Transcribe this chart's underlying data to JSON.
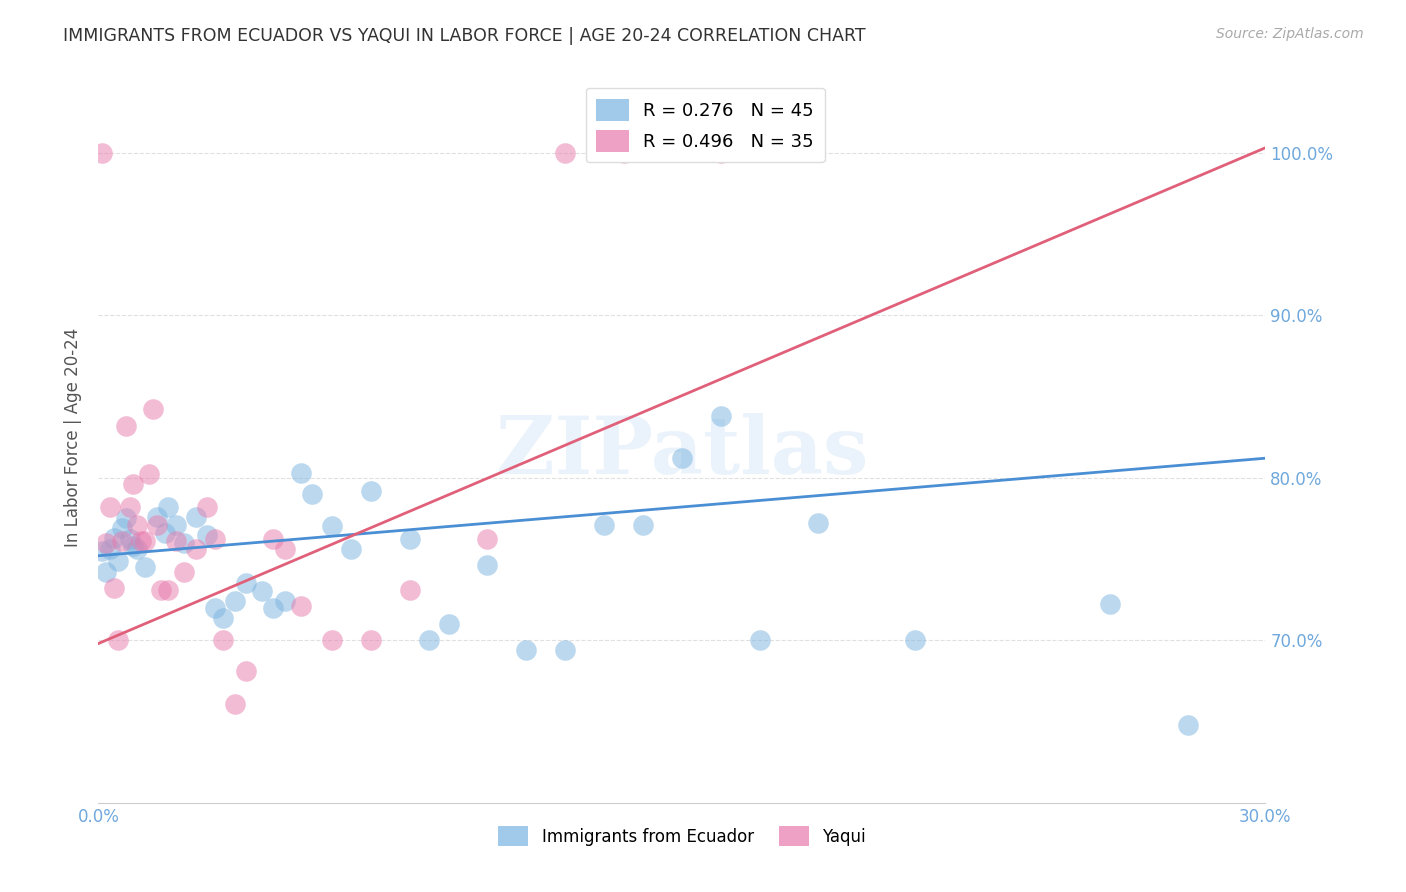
{
  "title": "IMMIGRANTS FROM ECUADOR VS YAQUI IN LABOR FORCE | AGE 20-24 CORRELATION CHART",
  "source": "Source: ZipAtlas.com",
  "ylabel": "In Labor Force | Age 20-24",
  "xlim": [
    0.0,
    0.3
  ],
  "ylim": [
    0.6,
    1.05
  ],
  "legend_entries": [
    {
      "label": "R = 0.276   N = 45",
      "color": "#7ab3e0"
    },
    {
      "label": "R = 0.496   N = 35",
      "color": "#e87aac"
    }
  ],
  "legend_labels_bottom": [
    "Immigrants from Ecuador",
    "Yaqui"
  ],
  "watermark": "ZIPatlas",
  "blue_color": "#7ab3e0",
  "pink_color": "#e87aac",
  "blue_line_color": "#4a8fd4",
  "pink_line_color": "#e0607a",
  "ecuador_points": [
    [
      0.001,
      0.755
    ],
    [
      0.002,
      0.742
    ],
    [
      0.003,
      0.756
    ],
    [
      0.004,
      0.763
    ],
    [
      0.005,
      0.749
    ],
    [
      0.006,
      0.769
    ],
    [
      0.007,
      0.775
    ],
    [
      0.008,
      0.762
    ],
    [
      0.009,
      0.758
    ],
    [
      0.01,
      0.756
    ],
    [
      0.012,
      0.745
    ],
    [
      0.015,
      0.776
    ],
    [
      0.017,
      0.766
    ],
    [
      0.018,
      0.782
    ],
    [
      0.02,
      0.771
    ],
    [
      0.022,
      0.76
    ],
    [
      0.025,
      0.776
    ],
    [
      0.028,
      0.765
    ],
    [
      0.03,
      0.72
    ],
    [
      0.032,
      0.714
    ],
    [
      0.035,
      0.724
    ],
    [
      0.038,
      0.735
    ],
    [
      0.042,
      0.73
    ],
    [
      0.045,
      0.72
    ],
    [
      0.048,
      0.724
    ],
    [
      0.052,
      0.803
    ],
    [
      0.055,
      0.79
    ],
    [
      0.06,
      0.77
    ],
    [
      0.065,
      0.756
    ],
    [
      0.07,
      0.792
    ],
    [
      0.08,
      0.762
    ],
    [
      0.085,
      0.7
    ],
    [
      0.09,
      0.71
    ],
    [
      0.1,
      0.746
    ],
    [
      0.11,
      0.694
    ],
    [
      0.12,
      0.694
    ],
    [
      0.13,
      0.771
    ],
    [
      0.14,
      0.771
    ],
    [
      0.15,
      0.812
    ],
    [
      0.16,
      0.838
    ],
    [
      0.17,
      0.7
    ],
    [
      0.185,
      0.772
    ],
    [
      0.21,
      0.7
    ],
    [
      0.26,
      0.722
    ],
    [
      0.28,
      0.648
    ]
  ],
  "yaqui_points": [
    [
      0.001,
      1.0
    ],
    [
      0.002,
      0.76
    ],
    [
      0.003,
      0.782
    ],
    [
      0.004,
      0.732
    ],
    [
      0.005,
      0.7
    ],
    [
      0.006,
      0.761
    ],
    [
      0.007,
      0.832
    ],
    [
      0.008,
      0.782
    ],
    [
      0.009,
      0.796
    ],
    [
      0.01,
      0.771
    ],
    [
      0.011,
      0.761
    ],
    [
      0.012,
      0.761
    ],
    [
      0.013,
      0.802
    ],
    [
      0.014,
      0.842
    ],
    [
      0.015,
      0.771
    ],
    [
      0.016,
      0.731
    ],
    [
      0.018,
      0.731
    ],
    [
      0.02,
      0.761
    ],
    [
      0.022,
      0.742
    ],
    [
      0.025,
      0.756
    ],
    [
      0.028,
      0.782
    ],
    [
      0.03,
      0.762
    ],
    [
      0.032,
      0.7
    ],
    [
      0.035,
      0.661
    ],
    [
      0.038,
      0.681
    ],
    [
      0.045,
      0.762
    ],
    [
      0.048,
      0.756
    ],
    [
      0.052,
      0.721
    ],
    [
      0.06,
      0.7
    ],
    [
      0.07,
      0.7
    ],
    [
      0.08,
      0.731
    ],
    [
      0.1,
      0.762
    ],
    [
      0.12,
      1.0
    ],
    [
      0.135,
      1.0
    ],
    [
      0.16,
      1.0
    ]
  ],
  "ecuador_line": {
    "x0": 0.0,
    "y0": 0.752,
    "x1": 0.3,
    "y1": 0.812
  },
  "yaqui_line": {
    "x0": 0.0,
    "y0": 0.698,
    "x1": 0.3,
    "y1": 1.003
  },
  "grid_color": "#e0e0e0",
  "bg_color": "#ffffff",
  "title_color": "#333333",
  "axis_label_color": "#555555",
  "tick_color": "#6fa8dc",
  "x_tick_positions": [
    0.0,
    0.05,
    0.1,
    0.15,
    0.2,
    0.25,
    0.3
  ],
  "y_tick_positions": [
    0.7,
    0.8,
    0.9,
    1.0
  ],
  "y_tick_labels": [
    "70.0%",
    "80.0%",
    "90.0%",
    "100.0%"
  ]
}
